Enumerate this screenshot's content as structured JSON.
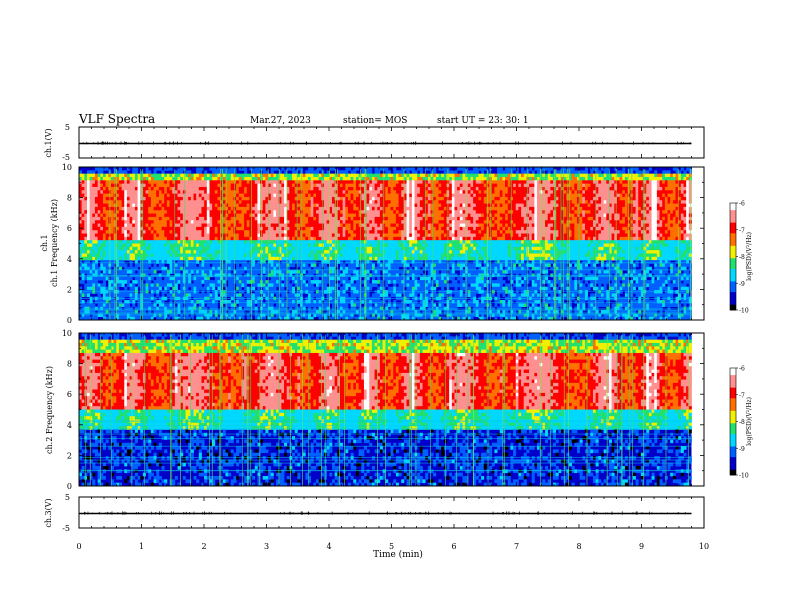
{
  "header": {
    "title": "VLF Spectra",
    "date": "Mar.27, 2023",
    "station": "station= MOS",
    "start": "start  UT =   23: 30: 1"
  },
  "chart_data": [
    {
      "type": "line",
      "panel": "ch1-waveform",
      "ylabel": "ch.1(V)",
      "ylim": [
        -5,
        5
      ],
      "yticks": [
        "5",
        "-5"
      ],
      "xlim": [
        0,
        10
      ],
      "x": [
        0,
        9.8
      ],
      "y": [
        0,
        0
      ]
    },
    {
      "type": "heatmap",
      "panel": "ch1-spectrogram",
      "ylabel": "ch.1 Frequency (kHz)",
      "ylim": [
        0,
        10
      ],
      "yticks": [
        "0",
        "2",
        "4",
        "6",
        "8",
        "10"
      ],
      "xlim": [
        0,
        10
      ],
      "data_end_min": 9.8,
      "band_khz": [
        5.2,
        9.2
      ],
      "colorbar": {
        "label": "log(PSD)(V²/Hz)",
        "range": [
          -10,
          -6
        ],
        "ticks": [
          "-6",
          "-7",
          "-8",
          "-9",
          "-10"
        ]
      }
    },
    {
      "type": "heatmap",
      "panel": "ch2-spectrogram",
      "ylabel": "ch.2 Frequency (kHz)",
      "ylim": [
        0,
        10
      ],
      "yticks": [
        "0",
        "2",
        "4",
        "6",
        "8",
        "10"
      ],
      "xlim": [
        0,
        10
      ],
      "data_end_min": 9.8,
      "band_khz": [
        5.0,
        8.8
      ],
      "colorbar": {
        "label": "log(PSD)(V²/Hz)",
        "range": [
          -10,
          -6
        ],
        "ticks": [
          "-6",
          "-7",
          "-8",
          "-9",
          "-10"
        ]
      }
    },
    {
      "type": "line",
      "panel": "ch3-waveform",
      "ylabel": "ch.3(V)",
      "ylim": [
        -5,
        5
      ],
      "yticks": [
        "5",
        "-5"
      ],
      "xlim": [
        0,
        10
      ],
      "xlabel": "Time (min)",
      "xticks": [
        "0",
        "1",
        "2",
        "3",
        "4",
        "5",
        "6",
        "7",
        "8",
        "9",
        "10"
      ],
      "x": [
        0,
        9.8
      ],
      "y": [
        0,
        0
      ]
    }
  ],
  "colormap": [
    "#000000",
    "#0000c8",
    "#0060ff",
    "#00d8ff",
    "#20e070",
    "#f0f000",
    "#ff7000",
    "#ff0000",
    "#ff9090",
    "#ffffff"
  ]
}
